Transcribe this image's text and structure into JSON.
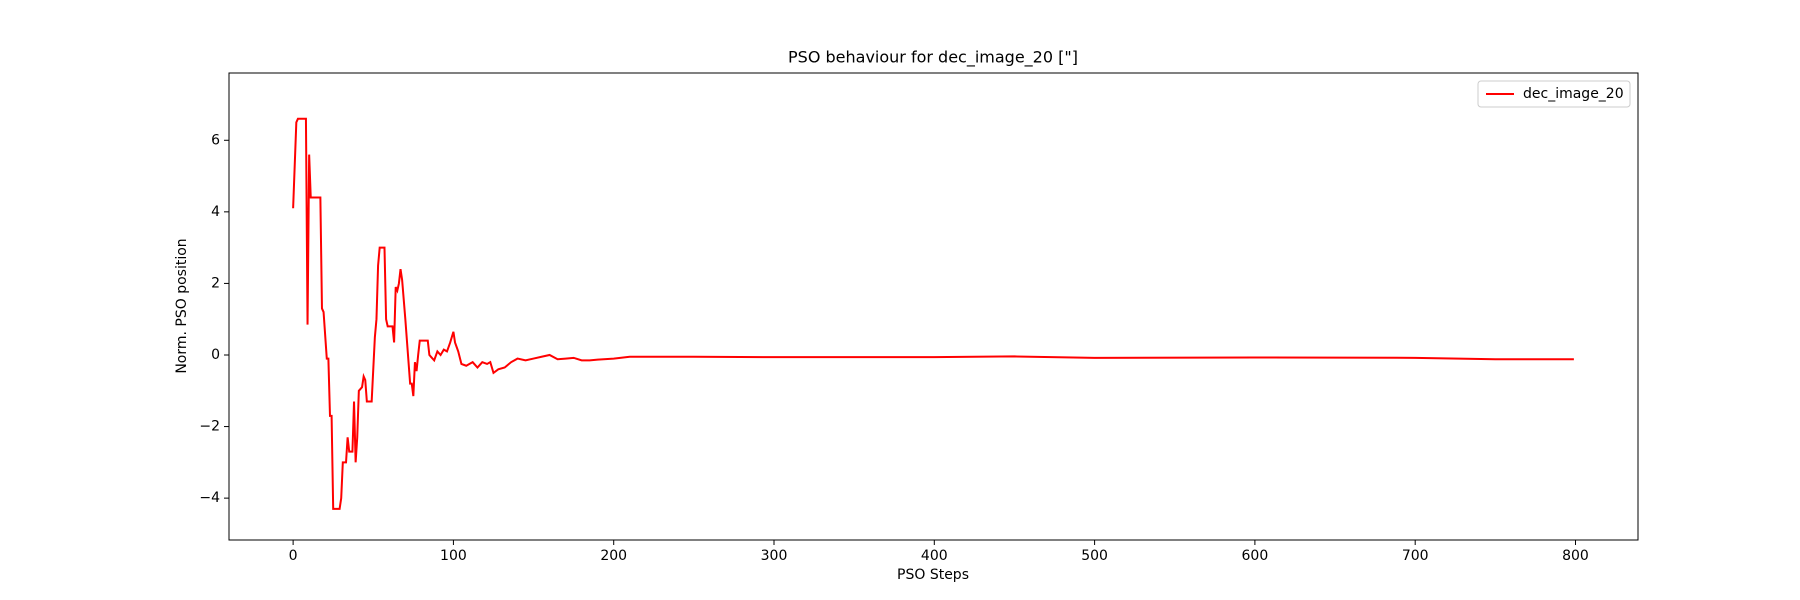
{
  "chart_data": {
    "type": "line",
    "title": "PSO behaviour for dec_image_20 [\"]",
    "xlabel": "PSO Steps",
    "ylabel": "Norm. PSO position",
    "x": [
      0,
      2,
      3,
      8,
      9,
      10,
      11,
      17,
      18,
      19,
      21,
      22,
      23,
      24,
      25,
      29,
      30,
      31,
      33,
      34,
      35,
      37,
      38,
      39,
      40,
      41,
      43,
      44,
      45,
      46,
      49,
      51,
      52,
      53,
      54,
      57,
      58,
      59,
      62,
      63,
      64,
      65,
      66,
      67,
      68,
      70,
      72,
      73,
      74,
      75,
      76,
      77,
      78,
      79,
      84,
      85,
      86,
      88,
      90,
      92,
      94,
      96,
      98,
      100,
      101,
      103,
      105,
      108,
      112,
      115,
      118,
      121,
      123,
      125,
      128,
      132,
      136,
      140,
      145,
      150,
      155,
      160,
      165,
      170,
      175,
      180,
      185,
      190,
      200,
      210,
      250,
      300,
      400,
      450,
      500,
      600,
      700,
      750,
      799
    ],
    "series": [
      {
        "name": "dec_image_20",
        "color": "#ff0000",
        "values": [
          4.1,
          6.5,
          6.6,
          6.6,
          0.85,
          5.6,
          4.4,
          4.4,
          1.3,
          1.2,
          -0.1,
          -0.1,
          -1.7,
          -1.7,
          -4.3,
          -4.3,
          -4.0,
          -3.0,
          -3.0,
          -2.3,
          -2.7,
          -2.7,
          -1.3,
          -3.0,
          -2.3,
          -1.0,
          -0.9,
          -0.6,
          -0.7,
          -1.3,
          -1.3,
          0.5,
          1.0,
          2.5,
          3.0,
          3.0,
          1.0,
          0.8,
          0.8,
          0.35,
          1.9,
          1.8,
          2.0,
          2.4,
          2.1,
          1.0,
          -0.2,
          -0.8,
          -0.8,
          -1.15,
          -0.2,
          -0.45,
          0.0,
          0.4,
          0.4,
          0.0,
          -0.05,
          -0.15,
          0.1,
          0.0,
          0.15,
          0.1,
          0.35,
          0.65,
          0.35,
          0.1,
          -0.25,
          -0.3,
          -0.2,
          -0.35,
          -0.2,
          -0.25,
          -0.2,
          -0.5,
          -0.4,
          -0.35,
          -0.2,
          -0.1,
          -0.15,
          -0.1,
          -0.05,
          0.0,
          -0.12,
          -0.1,
          -0.08,
          -0.15,
          -0.15,
          -0.13,
          -0.1,
          -0.05,
          -0.05,
          -0.06,
          -0.06,
          -0.04,
          -0.08,
          -0.07,
          -0.08,
          -0.12,
          -0.12
        ]
      }
    ],
    "xlim": [
      -40,
      839
    ],
    "ylim": [
      -5.17,
      7.88
    ],
    "xticks": [
      0,
      100,
      200,
      300,
      400,
      500,
      600,
      700,
      800
    ],
    "yticks": [
      {
        "value": -4,
        "label": "−4"
      },
      {
        "value": -2,
        "label": "−2"
      },
      0,
      2,
      4,
      6
    ],
    "legend": "upper right",
    "grid": false
  }
}
